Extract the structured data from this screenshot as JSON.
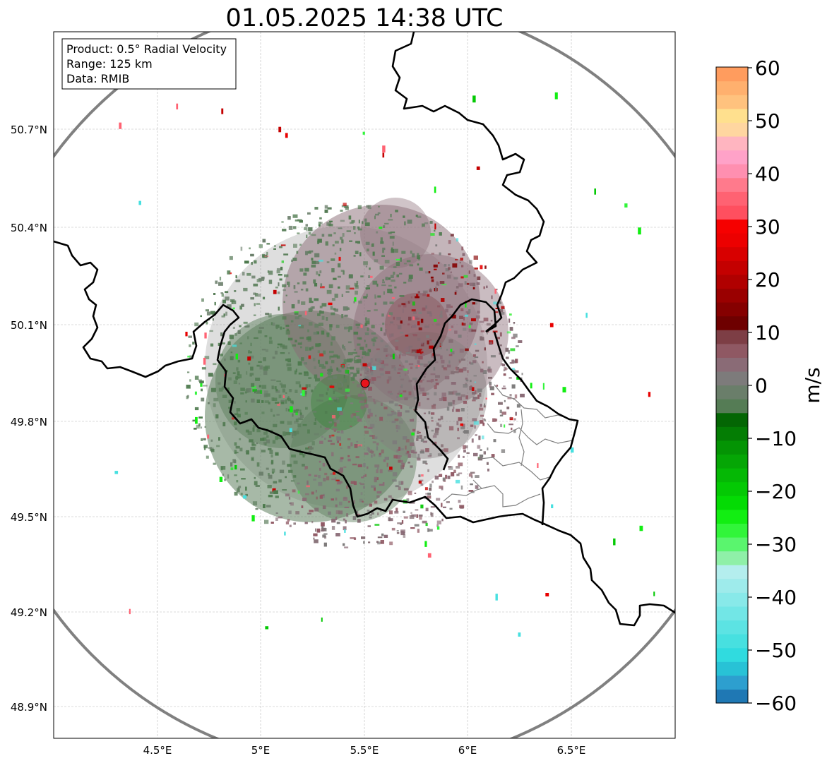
{
  "title": "01.05.2025 14:38 UTC",
  "info_box": {
    "product": "Product: 0.5° Radial Velocity",
    "range": "Range: 125 km",
    "data": "Data: RMIB"
  },
  "map": {
    "lat_ticks": [
      "50.7°N",
      "50.4°N",
      "50.1°N",
      "49.8°N",
      "49.5°N",
      "49.2°N",
      "48.9°N"
    ],
    "lon_ticks": [
      "4.5°E",
      "5°E",
      "5.5°E",
      "6°E",
      "6.5°E"
    ],
    "radar_site_color": "#e8141c",
    "range_ring_color": "#808080",
    "border_color": "#000000",
    "subdivision_color": "#808080"
  },
  "colorbar": {
    "label": "m/s",
    "min": -60,
    "max": 60,
    "ticks": [
      "60",
      "50",
      "40",
      "30",
      "20",
      "10",
      "0",
      "−10",
      "−20",
      "−30",
      "−40",
      "−50",
      "−60"
    ],
    "colors": [
      "#1f78b4",
      "#2d9fcf",
      "#28c2d6",
      "#30dbdf",
      "#47e0e0",
      "#5ce3e3",
      "#72e6e6",
      "#88e9e9",
      "#9eebeb",
      "#b4eeee",
      "#8ff0a8",
      "#5af56e",
      "#31f53a",
      "#12ee12",
      "#04db04",
      "#04c904",
      "#05b805",
      "#05a605",
      "#049404",
      "#047d04",
      "#046604",
      "#557c55",
      "#6a7e6a",
      "#7d7b7b",
      "#8a6b76",
      "#8f5863",
      "#7d3e45",
      "#6e0000",
      "#850000",
      "#9a0000",
      "#b00000",
      "#c40000",
      "#d80000",
      "#ec0000",
      "#f60000",
      "#ff4f5f",
      "#ff6272",
      "#ff7a8c",
      "#ff8fb0",
      "#ffa2c8",
      "#ffb5c0",
      "#ffd6a0",
      "#ffe08e",
      "#ffc27e",
      "#ffb06e",
      "#ff9c5e"
    ]
  }
}
